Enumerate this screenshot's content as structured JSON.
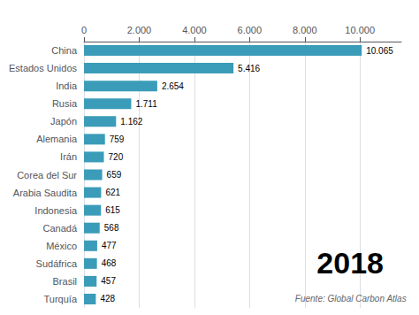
{
  "chart_data": {
    "type": "bar",
    "orientation": "horizontal",
    "categories": [
      "Turquía",
      "Brasil",
      "Sudáfrica",
      "México",
      "Canadá",
      "Indonesia",
      "Arabia Saudita",
      "Corea del Sur",
      "Irán",
      "Alemania",
      "Japón",
      "Rusia",
      "India",
      "Estados Unidos",
      "China"
    ],
    "values": [
      428,
      457,
      468,
      477,
      568,
      615,
      621,
      659,
      720,
      759,
      1162,
      1711,
      2654,
      5416,
      10065
    ],
    "value_labels": [
      "428",
      "457",
      "468",
      "477",
      "568",
      "615",
      "621",
      "659",
      "720",
      "759",
      "1.162",
      "1.711",
      "2.654",
      "5.416",
      "10.065"
    ],
    "data_labels": true,
    "color": "#3a9cb8",
    "xlim": [
      0,
      11500
    ],
    "xticks": [
      0,
      {
        "value": 2000,
        "label": "2.000"
      },
      {
        "value": 4000,
        "label": "4.000"
      },
      {
        "value": 6000,
        "label": "6.000"
      },
      {
        "value": 8000,
        "label": "8.000"
      },
      {
        "value": 10000,
        "label": "10.000"
      }
    ],
    "grid": true,
    "annotations": [
      "2018",
      "Fuente: Global Carbon Atlas"
    ]
  }
}
